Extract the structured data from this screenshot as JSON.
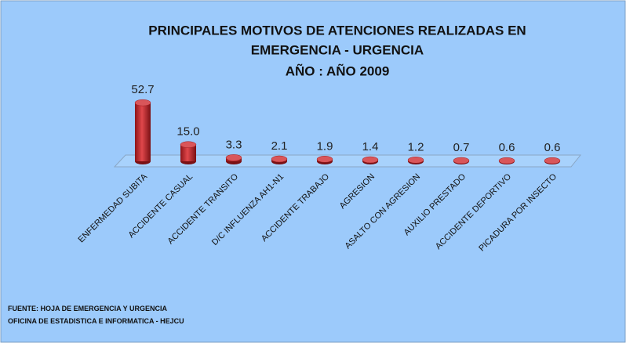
{
  "chart_data": {
    "type": "bar",
    "title": [
      "PRINCIPALES MOTIVOS DE ATENCIONES REALIZADAS EN",
      "EMERGENCIA - URGENCIA",
      "AÑO : AÑO 2009"
    ],
    "categories": [
      "ENFERMEDAD SUBITA",
      "ACCIDENTE CASUAL",
      "ACCIDENTE TRANSITO",
      "D/C INFLUENZA AH1-N1",
      "ACCIDENTE TRABAJO",
      "AGRESION",
      "ASALTO CON AGRESION",
      "AUXILIO PRESTADO",
      "ACCIDENTE DEPORTIVO",
      "PICADURA POR INSECTO"
    ],
    "values": [
      52.7,
      15,
      3.3,
      2.1,
      1.9,
      1.4,
      1.2,
      0.7,
      0.6,
      0.6
    ],
    "value_labels": [
      "52.7",
      "15.0",
      "3.3",
      "2.1",
      "1.9",
      "1.4",
      "1.2",
      "0.7",
      "0.6",
      "0.6"
    ],
    "color": "#c0272d",
    "source": [
      "FUENTE:  HOJA DE EMERGENCIA  Y URGENCIA",
      "OFICINA DE ESTADISTICA  E INFORMATICA    - HEJCU"
    ]
  }
}
